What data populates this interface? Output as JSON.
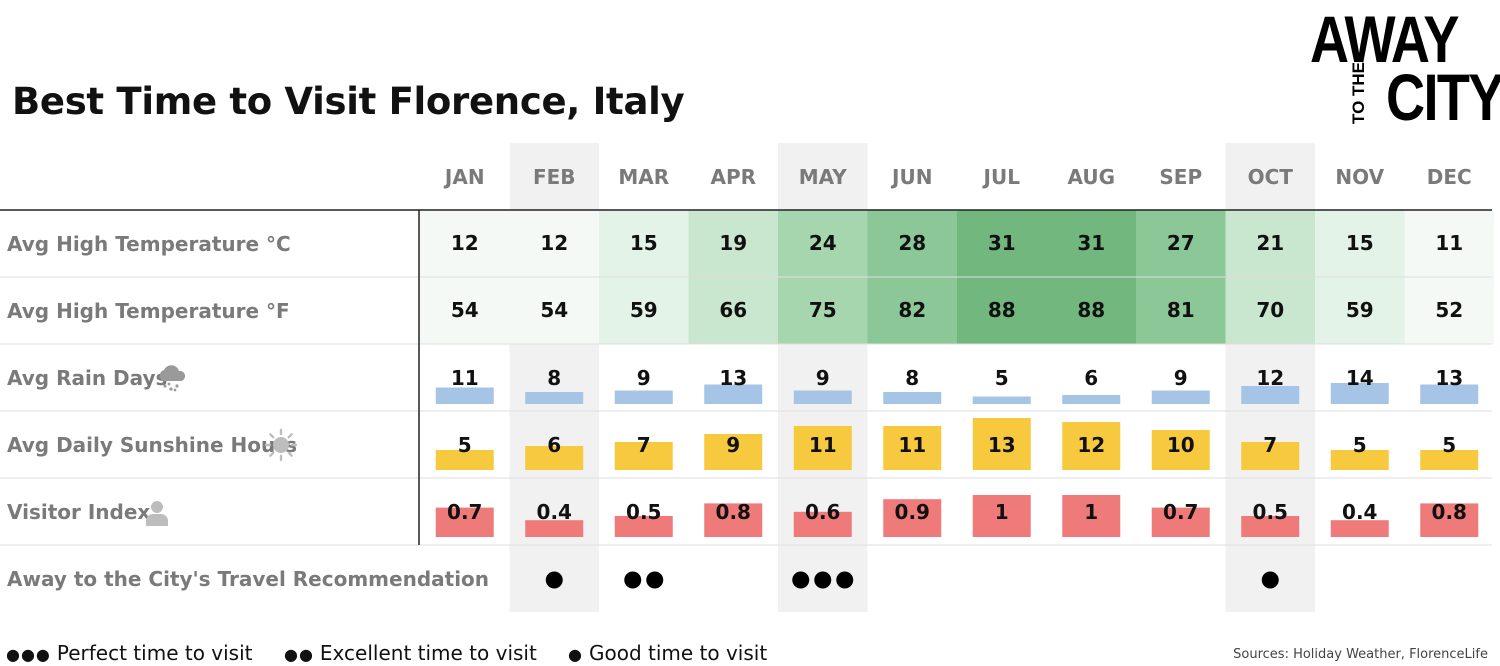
{
  "title": "Best Time to Visit Florence, Italy",
  "logo": {
    "line1": "AWAY",
    "line2": "TO THE",
    "line3": "CITY"
  },
  "rows": {
    "temp_c": "Avg High Temperature °C",
    "temp_f": "Avg High Temperature °F",
    "rain": "Avg Rain Days",
    "sun": "Avg Daily Sunshine Hours",
    "visitor": "Visitor Index",
    "recommend": "Away to the City's Travel Recommendation"
  },
  "icons": {
    "rain": "rain-cloud-icon",
    "sun": "sun-icon",
    "visitor": "person-icon"
  },
  "legend": {
    "perfect": {
      "dots": "●●●",
      "label": "Perfect time to visit"
    },
    "excellent": {
      "dots": "●●",
      "label": "Excellent time to visit"
    },
    "good": {
      "dots": "●",
      "label": "Good time to visit"
    }
  },
  "source": "Sources: Holiday Weather, FlorenceLife",
  "colors": {
    "rain_bar": "#a6c4e6",
    "sun_bar": "#f6c93e",
    "visitor_bar": "#ee7a7a",
    "highlight_col": "#f1f1f1",
    "green_scale": [
      "#f4f9f5",
      "#e4f3e7",
      "#c9e7cf",
      "#a6d6ae",
      "#8cc797",
      "#71b77e"
    ]
  },
  "chart_data": {
    "type": "table",
    "months": [
      "JAN",
      "FEB",
      "MAR",
      "APR",
      "MAY",
      "JUN",
      "JUL",
      "AUG",
      "SEP",
      "OCT",
      "NOV",
      "DEC"
    ],
    "highlighted_months": [
      "FEB",
      "MAY",
      "OCT"
    ],
    "temp_c": [
      12,
      12,
      15,
      19,
      24,
      28,
      31,
      31,
      27,
      21,
      15,
      11
    ],
    "temp_f": [
      54,
      54,
      59,
      66,
      75,
      82,
      88,
      88,
      81,
      70,
      59,
      52
    ],
    "rain_days": [
      11,
      8,
      9,
      13,
      9,
      8,
      5,
      6,
      9,
      12,
      14,
      13
    ],
    "sunshine_hours": [
      5,
      6,
      7,
      9,
      11,
      11,
      13,
      12,
      10,
      7,
      5,
      5
    ],
    "visitor_index": [
      "0.7",
      "0.4",
      "0.5",
      "0.8",
      "0.6",
      "0.9",
      "1",
      "1",
      "0.7",
      "0.5",
      "0.4",
      "0.8"
    ],
    "recommendation": [
      0,
      1,
      2,
      0,
      3,
      0,
      0,
      0,
      0,
      1,
      0,
      0
    ]
  }
}
